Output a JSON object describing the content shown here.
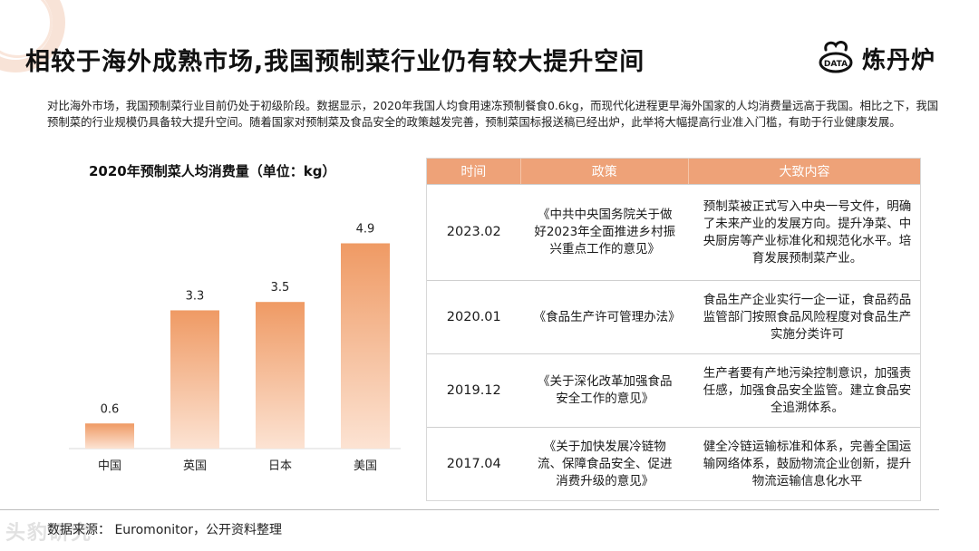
{
  "title": "相较于海外成熟市场,我国预制菜行业仍有较大提升空间",
  "logo": {
    "icon": "chef-hat-data-icon",
    "icon_text": "DATA",
    "text": "炼丹炉"
  },
  "intro": "对比海外市场，我国预制菜行业目前仍处于初级阶段。数据显示，2020年我国人均食用速冻预制餐食0.6kg，而现代化进程更早海外国家的人均消费量远高于我国。相比之下，我国预制菜的行业规模仍具备较大提升空间。随着国家对预制菜及食品安全的政策越发完善，预制菜国标报送稿已经出炉，此举将大幅提高行业准入门槛，有助于行业健康发展。",
  "chart_data": {
    "type": "bar",
    "title": "2020年预制菜人均消费量（单位：kg）",
    "categories": [
      "中国",
      "英国",
      "日本",
      "美国"
    ],
    "values": [
      0.6,
      3.3,
      3.5,
      4.9
    ],
    "ylim": [
      0,
      5.3
    ],
    "grid": false,
    "bar_color_top": "#f0a070",
    "bar_color_bottom": "#fbe0cf"
  },
  "table": {
    "headers": [
      "时间",
      "政策",
      "大致内容"
    ],
    "rows": [
      {
        "time": "2023.02",
        "policy": "《中共中央国务院关于做好2023年全面推进乡村振兴重点工作的意见》",
        "content": "预制菜被正式写入中央一号文件，明确了未来产业的发展方向。提升净菜、中央厨房等产业标准化和规范化水平。培育发展预制菜产业。"
      },
      {
        "time": "2020.01",
        "policy": "《食品生产许可管理办法》",
        "content": "食品生产企业实行一企一证，食品药品监管部门按照食品风险程度对食品生产实施分类许可"
      },
      {
        "time": "2019.12",
        "policy": "《关于深化改革加强食品安全工作的意见》",
        "content": "生产者要有产地污染控制意识，加强责任感，加强食品安全监管。建立食品安全追溯体系。"
      },
      {
        "time": "2017.04",
        "policy": "《关于加快发展冷链物流、保障食品安全、促进消费升级的意见》",
        "content": "健全冷链运输标准和体系，完善全国运输网络体系，鼓励物流企业创新，提升物流运输信息化水平"
      }
    ]
  },
  "source": "数据来源：  Euromonitor，公开资料整理",
  "watermark": "头豹研究"
}
